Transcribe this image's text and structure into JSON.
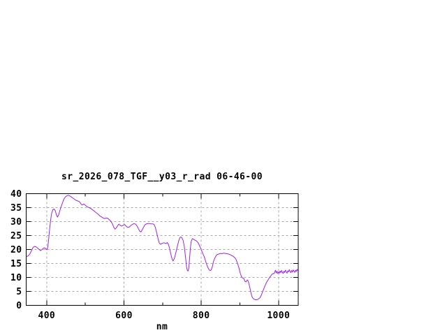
{
  "chart_data": {
    "type": "line",
    "title": "sr_2026_078_TGF__y03_r_rad 06-46-00",
    "xlabel": "nm",
    "ylabel": "",
    "xlim": [
      347,
      1051
    ],
    "ylim": [
      0,
      40
    ],
    "x_major_ticks": [
      400,
      600,
      800,
      1000
    ],
    "x_minor_ticks": [
      500,
      700,
      900
    ],
    "y_ticks": [
      0,
      5,
      10,
      15,
      20,
      25,
      30,
      35,
      40
    ],
    "grid": true,
    "legend": "none",
    "colors": {
      "line": "#a020f0",
      "grid": "#a8a8a8",
      "border": "#000000",
      "background": "#ffffff",
      "text": "#000000"
    },
    "series": [
      {
        "name": "sr_2026_078_TGF__y03_r_rad",
        "points": [
          [
            348,
            17.5
          ],
          [
            352,
            17.7
          ],
          [
            356,
            18.3
          ],
          [
            360,
            19.4
          ],
          [
            364,
            20.6
          ],
          [
            368,
            21.1
          ],
          [
            372,
            21.0
          ],
          [
            376,
            20.6
          ],
          [
            380,
            20.1
          ],
          [
            384,
            19.6
          ],
          [
            388,
            20.0
          ],
          [
            392,
            20.5
          ],
          [
            395,
            20.6
          ],
          [
            398,
            20.1
          ],
          [
            401,
            20.0
          ],
          [
            403,
            21.0
          ],
          [
            405,
            23.5
          ],
          [
            407,
            26.5
          ],
          [
            409,
            29.0
          ],
          [
            411,
            31.3
          ],
          [
            413,
            33.0
          ],
          [
            416,
            34.3
          ],
          [
            419,
            34.5
          ],
          [
            422,
            34.0
          ],
          [
            425,
            32.5
          ],
          [
            428,
            31.6
          ],
          [
            431,
            32.4
          ],
          [
            434,
            33.8
          ],
          [
            437,
            35.2
          ],
          [
            440,
            36.4
          ],
          [
            443,
            37.5
          ],
          [
            446,
            38.4
          ],
          [
            449,
            38.9
          ],
          [
            452,
            39.2
          ],
          [
            455,
            39.4
          ],
          [
            458,
            39.3
          ],
          [
            461,
            39.1
          ],
          [
            464,
            38.8
          ],
          [
            468,
            38.4
          ],
          [
            472,
            38.0
          ],
          [
            476,
            37.6
          ],
          [
            480,
            37.4
          ],
          [
            484,
            37.2
          ],
          [
            487,
            36.7
          ],
          [
            490,
            36.1
          ],
          [
            493,
            36.0
          ],
          [
            496,
            36.3
          ],
          [
            499,
            36.0
          ],
          [
            502,
            35.6
          ],
          [
            506,
            35.2
          ],
          [
            510,
            35.0
          ],
          [
            514,
            34.7
          ],
          [
            518,
            34.3
          ],
          [
            522,
            33.9
          ],
          [
            526,
            33.4
          ],
          [
            530,
            33.0
          ],
          [
            534,
            32.5
          ],
          [
            538,
            32.0
          ],
          [
            542,
            31.7
          ],
          [
            546,
            31.3
          ],
          [
            550,
            31.1
          ],
          [
            554,
            31.3
          ],
          [
            558,
            31.2
          ],
          [
            562,
            30.7
          ],
          [
            566,
            30.1
          ],
          [
            570,
            29.2
          ],
          [
            574,
            27.9
          ],
          [
            577,
            27.3
          ],
          [
            580,
            27.7
          ],
          [
            584,
            28.6
          ],
          [
            587,
            29.1
          ],
          [
            590,
            28.7
          ],
          [
            594,
            28.4
          ],
          [
            598,
            28.7
          ],
          [
            602,
            28.9
          ],
          [
            606,
            28.3
          ],
          [
            610,
            27.9
          ],
          [
            614,
            28.1
          ],
          [
            618,
            28.6
          ],
          [
            622,
            29.0
          ],
          [
            626,
            29.3
          ],
          [
            630,
            29.1
          ],
          [
            634,
            28.4
          ],
          [
            638,
            27.3
          ],
          [
            641,
            26.5
          ],
          [
            644,
            26.3
          ],
          [
            647,
            27.0
          ],
          [
            650,
            27.8
          ],
          [
            654,
            28.8
          ],
          [
            658,
            29.2
          ],
          [
            662,
            29.3
          ],
          [
            666,
            29.3
          ],
          [
            670,
            29.2
          ],
          [
            674,
            29.2
          ],
          [
            678,
            29.0
          ],
          [
            682,
            27.6
          ],
          [
            685,
            25.8
          ],
          [
            688,
            24.0
          ],
          [
            691,
            22.5
          ],
          [
            694,
            21.9
          ],
          [
            697,
            22.0
          ],
          [
            700,
            22.3
          ],
          [
            703,
            22.4
          ],
          [
            706,
            22.3
          ],
          [
            709,
            22.1
          ],
          [
            712,
            22.5
          ],
          [
            715,
            21.9
          ],
          [
            718,
            20.4
          ],
          [
            721,
            18.6
          ],
          [
            724,
            16.8
          ],
          [
            727,
            15.9
          ],
          [
            730,
            16.6
          ],
          [
            733,
            18.2
          ],
          [
            736,
            19.8
          ],
          [
            739,
            21.6
          ],
          [
            742,
            23.2
          ],
          [
            745,
            24.3
          ],
          [
            747,
            24.5
          ],
          [
            750,
            24.2
          ],
          [
            753,
            23.3
          ],
          [
            756,
            21.2
          ],
          [
            759,
            17.8
          ],
          [
            762,
            13.8
          ],
          [
            764,
            12.5
          ],
          [
            766,
            12.3
          ],
          [
            768,
            13.5
          ],
          [
            770,
            17.0
          ],
          [
            772,
            20.5
          ],
          [
            774,
            22.8
          ],
          [
            777,
            23.9
          ],
          [
            780,
            23.7
          ],
          [
            783,
            23.4
          ],
          [
            786,
            23.2
          ],
          [
            789,
            22.9
          ],
          [
            792,
            22.4
          ],
          [
            795,
            21.5
          ],
          [
            798,
            20.6
          ],
          [
            801,
            19.6
          ],
          [
            804,
            18.6
          ],
          [
            808,
            17.3
          ],
          [
            812,
            15.5
          ],
          [
            816,
            13.9
          ],
          [
            820,
            12.8
          ],
          [
            823,
            12.4
          ],
          [
            826,
            12.7
          ],
          [
            829,
            14.0
          ],
          [
            832,
            15.8
          ],
          [
            835,
            16.9
          ],
          [
            838,
            17.7
          ],
          [
            841,
            18.2
          ],
          [
            846,
            18.4
          ],
          [
            850,
            18.6
          ],
          [
            854,
            18.5
          ],
          [
            858,
            18.7
          ],
          [
            862,
            18.6
          ],
          [
            866,
            18.5
          ],
          [
            870,
            18.4
          ],
          [
            874,
            18.2
          ],
          [
            878,
            17.9
          ],
          [
            882,
            17.6
          ],
          [
            886,
            17.2
          ],
          [
            890,
            16.5
          ],
          [
            894,
            15.0
          ],
          [
            898,
            13.2
          ],
          [
            901,
            11.5
          ],
          [
            904,
            10.3
          ],
          [
            907,
            9.8
          ],
          [
            910,
            9.7
          ],
          [
            913,
            8.6
          ],
          [
            916,
            8.4
          ],
          [
            919,
            9.1
          ],
          [
            922,
            8.6
          ],
          [
            925,
            6.8
          ],
          [
            928,
            5.0
          ],
          [
            931,
            3.2
          ],
          [
            934,
            2.5
          ],
          [
            937,
            2.2
          ],
          [
            940,
            2.0
          ],
          [
            943,
            2.0
          ],
          [
            946,
            2.1
          ],
          [
            949,
            2.4
          ],
          [
            952,
            2.7
          ],
          [
            955,
            3.5
          ],
          [
            958,
            4.5
          ],
          [
            961,
            5.6
          ],
          [
            964,
            6.7
          ],
          [
            967,
            7.6
          ],
          [
            970,
            8.5
          ],
          [
            973,
            9.1
          ],
          [
            976,
            9.8
          ],
          [
            979,
            10.4
          ],
          [
            982,
            10.9
          ],
          [
            985,
            11.4
          ],
          [
            988,
            11.3
          ],
          [
            990,
            11.8
          ],
          [
            992,
            12.6
          ],
          [
            994,
            11.6
          ],
          [
            996,
            12.2
          ],
          [
            998,
            11.4
          ],
          [
            1000,
            12.0
          ],
          [
            1002,
            11.5
          ],
          [
            1004,
            12.3
          ],
          [
            1006,
            11.7
          ],
          [
            1008,
            12.5
          ],
          [
            1010,
            11.9
          ],
          [
            1012,
            11.4
          ],
          [
            1014,
            12.2
          ],
          [
            1016,
            11.8
          ],
          [
            1018,
            12.6
          ],
          [
            1020,
            12.0
          ],
          [
            1022,
            11.5
          ],
          [
            1024,
            12.4
          ],
          [
            1026,
            12.0
          ],
          [
            1028,
            12.8
          ],
          [
            1030,
            12.1
          ],
          [
            1032,
            11.7
          ],
          [
            1034,
            12.5
          ],
          [
            1036,
            11.9
          ],
          [
            1038,
            12.7
          ],
          [
            1040,
            12.2
          ],
          [
            1042,
            11.8
          ],
          [
            1044,
            12.6
          ],
          [
            1046,
            12.1
          ],
          [
            1048,
            12.9
          ],
          [
            1050,
            12.4
          ]
        ]
      }
    ]
  }
}
